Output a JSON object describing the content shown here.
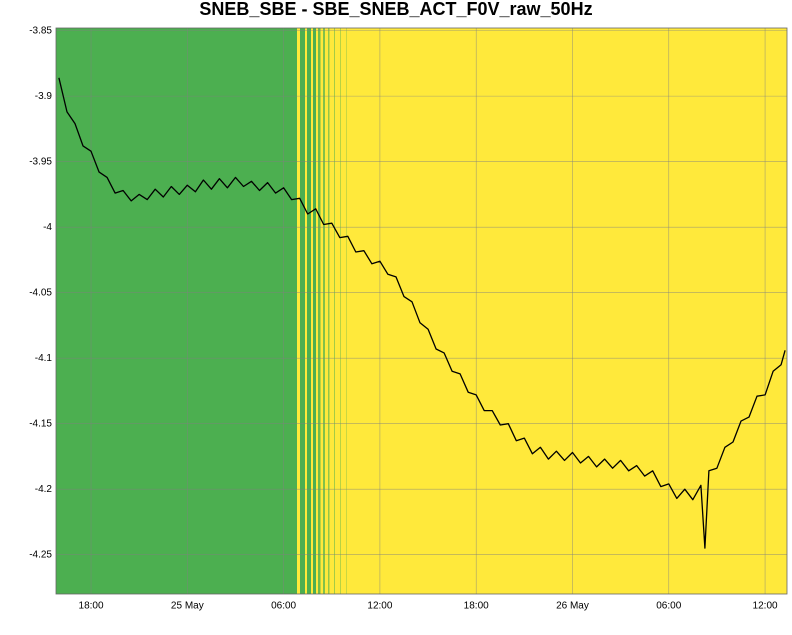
{
  "chart_data": {
    "type": "line",
    "title": "SNEB_SBE - SBE_SNEB_ACT_F0V_raw_50Hz",
    "x": [
      "24 May 16:00",
      "24 May 16:30",
      "24 May 17:00",
      "24 May 17:30",
      "24 May 18:00",
      "24 May 18:30",
      "24 May 19:00",
      "24 May 19:30",
      "24 May 20:00",
      "24 May 20:30",
      "24 May 21:00",
      "24 May 21:30",
      "24 May 22:00",
      "24 May 22:30",
      "24 May 23:00",
      "24 May 23:30",
      "25 May 00:00",
      "25 May 00:30",
      "25 May 01:00",
      "25 May 01:30",
      "25 May 02:00",
      "25 May 02:30",
      "25 May 03:00",
      "25 May 03:30",
      "25 May 04:00",
      "25 May 04:30",
      "25 May 05:00",
      "25 May 05:30",
      "25 May 06:00",
      "25 May 06:30",
      "25 May 07:00",
      "25 May 07:30",
      "25 May 08:00",
      "25 May 08:30",
      "25 May 09:00",
      "25 May 09:30",
      "25 May 10:00",
      "25 May 10:30",
      "25 May 11:00",
      "25 May 11:30",
      "25 May 12:00",
      "25 May 12:30",
      "25 May 13:00",
      "25 May 13:30",
      "25 May 14:00",
      "25 May 14:30",
      "25 May 15:00",
      "25 May 15:30",
      "25 May 16:00",
      "25 May 16:30",
      "25 May 17:00",
      "25 May 17:30",
      "25 May 18:00",
      "25 May 18:30",
      "25 May 19:00",
      "25 May 19:30",
      "25 May 20:00",
      "25 May 20:30",
      "25 May 21:00",
      "25 May 21:30",
      "25 May 22:00",
      "25 May 22:30",
      "25 May 23:00",
      "25 May 23:30",
      "26 May 00:00",
      "26 May 00:30",
      "26 May 01:00",
      "26 May 01:30",
      "26 May 02:00",
      "26 May 02:30",
      "26 May 03:00",
      "26 May 03:30",
      "26 May 04:00",
      "26 May 04:30",
      "26 May 05:00",
      "26 May 05:30",
      "26 May 06:00",
      "26 May 06:30",
      "26 May 07:00",
      "26 May 07:30",
      "26 May 08:00",
      "26 May 08:15",
      "26 May 08:30",
      "26 May 09:00",
      "26 May 09:30",
      "26 May 10:00",
      "26 May 10:30",
      "26 May 11:00",
      "26 May 11:30",
      "26 May 12:00",
      "26 May 12:30",
      "26 May 13:00",
      "26 May 13:15"
    ],
    "series": [
      {
        "color": "#000000",
        "values": [
          -3.886,
          -3.912,
          -3.921,
          -3.938,
          -3.942,
          -3.958,
          -3.962,
          -3.974,
          -3.972,
          -3.98,
          -3.975,
          -3.979,
          -3.971,
          -3.977,
          -3.969,
          -3.975,
          -3.968,
          -3.973,
          -3.964,
          -3.971,
          -3.963,
          -3.97,
          -3.962,
          -3.969,
          -3.965,
          -3.972,
          -3.966,
          -3.974,
          -3.97,
          -3.979,
          -3.978,
          -3.99,
          -3.986,
          -3.998,
          -3.997,
          -4.008,
          -4.007,
          -4.019,
          -4.018,
          -4.028,
          -4.026,
          -4.036,
          -4.038,
          -4.053,
          -4.057,
          -4.073,
          -4.078,
          -4.093,
          -4.096,
          -4.11,
          -4.112,
          -4.126,
          -4.128,
          -4.14,
          -4.14,
          -4.151,
          -4.15,
          -4.163,
          -4.161,
          -4.173,
          -4.168,
          -4.177,
          -4.171,
          -4.178,
          -4.172,
          -4.18,
          -4.175,
          -4.183,
          -4.177,
          -4.184,
          -4.178,
          -4.186,
          -4.182,
          -4.19,
          -4.186,
          -4.198,
          -4.196,
          -4.207,
          -4.2,
          -4.208,
          -4.197,
          -4.245,
          -4.186,
          -4.184,
          -4.168,
          -4.164,
          -4.148,
          -4.145,
          -4.129,
          -4.128,
          -4.11,
          -4.105,
          -4.094
        ]
      }
    ],
    "xlim": [
      "24 May 15:49",
      "26 May 13:22"
    ],
    "xticks": [
      {
        "value": "24 May 18:00",
        "label": "18:00"
      },
      {
        "value": "25 May 00:00",
        "label": "25 May"
      },
      {
        "value": "25 May 06:00",
        "label": "06:00"
      },
      {
        "value": "25 May 12:00",
        "label": "12:00"
      },
      {
        "value": "25 May 18:00",
        "label": "18:00"
      },
      {
        "value": "26 May 00:00",
        "label": "26 May"
      },
      {
        "value": "26 May 06:00",
        "label": "06:00"
      },
      {
        "value": "26 May 12:00",
        "label": "12:00"
      }
    ],
    "ylim": [
      -4.28,
      -3.848
    ],
    "yticks": [
      -3.85,
      -3.9,
      -3.95,
      -4,
      -4.05,
      -4.1,
      -4.15,
      -4.2,
      -4.25
    ],
    "grid": true
  }
}
